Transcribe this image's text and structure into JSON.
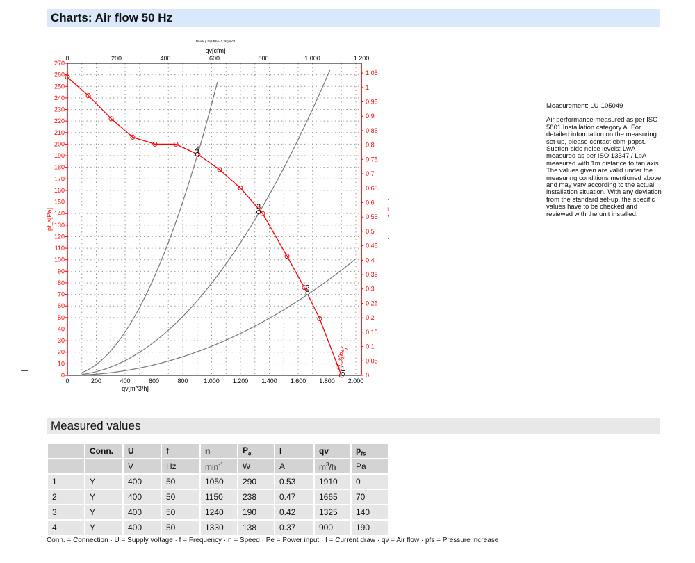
{
  "header": {
    "title": "Charts: Air flow 50 Hz"
  },
  "note": {
    "measurement": "Measurement: LU-105049",
    "text": "Air performance measured as per ISO 5801 Installation category A. For detailed information on the measuring set-up, please contact ebm-papst. Suction-side noise levels: LwA measured as per ISO 13347 / LpA measured with 1m distance to fan axis. The values given are valid under the measuring conditions mentioned above and may vary according to the actual installation situation. With any deviation from the standard set-up, the specific values have to be checked and reviewed with the unit installed."
  },
  "chart_data": {
    "type": "line",
    "title": "Druck p f @ Rho=1,2kg/m^3",
    "xlabel": "qv[m^3/h]",
    "x2label": "qv[cfm]",
    "ylabel": "pf_s[Pa]",
    "y2label": "pfs_E[IN H2O]",
    "xlim": [
      0,
      2000
    ],
    "ylim": [
      0,
      270
    ],
    "x2lim": [
      0,
      1200
    ],
    "y2lim": [
      0,
      1.05
    ],
    "xticks": [
      "0",
      "200",
      "400",
      "600",
      "800",
      "1.000",
      "1.200",
      "1.400",
      "1.600",
      "1.800",
      "2.000"
    ],
    "x2ticks": [
      "0",
      "200",
      "400",
      "600",
      "800",
      "1.000",
      "1.200"
    ],
    "yticks": [
      "0",
      "10",
      "20",
      "30",
      "40",
      "50",
      "60",
      "70",
      "80",
      "90",
      "100",
      "110",
      "120",
      "130",
      "140",
      "150",
      "160",
      "170",
      "180",
      "190",
      "200",
      "210",
      "220",
      "230",
      "240",
      "250",
      "260",
      "270"
    ],
    "y2ticks": [
      "0",
      "0,05",
      "0,1",
      "0,15",
      "0,2",
      "0,25",
      "0,3",
      "0,35",
      "0,4",
      "0,45",
      "0,5",
      "0,55",
      "0,6",
      "0,65",
      "0,7",
      "0,75",
      "0,8",
      "0,85",
      "0,9",
      "0,95",
      "1",
      "1,05"
    ],
    "fan_curve": {
      "name": "pf_s[Pa]",
      "color": "#ff0000",
      "x": [
        0,
        145,
        304,
        453,
        607,
        752,
        906,
        1055,
        1200,
        1354,
        1523,
        1643,
        1749,
        1900
      ],
      "y": [
        258,
        242,
        222,
        206,
        200,
        200,
        191,
        178,
        162,
        140,
        103,
        76,
        49,
        0
      ]
    },
    "system_curves": [
      {
        "label": "4",
        "k": 0.0002346,
        "xmax": 1055
      },
      {
        "label": "3",
        "k": 7.97e-05,
        "xmax": 1827
      },
      {
        "label": "2",
        "k": 2.52e-05,
        "xmax": 2000
      }
    ],
    "operating_points": [
      {
        "label": "1",
        "x": 1910,
        "y": 0
      },
      {
        "label": "2",
        "x": 1665,
        "y": 70
      },
      {
        "label": "3",
        "x": 1325,
        "y": 140
      },
      {
        "label": "4",
        "x": 900,
        "y": 190
      }
    ],
    "grid": true
  },
  "measured": {
    "title": "Measured values",
    "header": [
      "",
      "Conn.",
      "U",
      "f",
      "n",
      "Pe",
      "I",
      "qv",
      "pfs"
    ],
    "units": [
      "",
      "",
      "V",
      "Hz",
      "min-1",
      "W",
      "A",
      "m3/h",
      "Pa"
    ],
    "rows": [
      [
        "1",
        "Y",
        "400",
        "50",
        "1050",
        "290",
        "0.53",
        "1910",
        "0"
      ],
      [
        "2",
        "Y",
        "400",
        "50",
        "1150",
        "238",
        "0.47",
        "1665",
        "70"
      ],
      [
        "3",
        "Y",
        "400",
        "50",
        "1240",
        "190",
        "0.42",
        "1325",
        "140"
      ],
      [
        "4",
        "Y",
        "400",
        "50",
        "1330",
        "138",
        "0.37",
        "900",
        "190"
      ]
    ],
    "footnote": "Conn. = Connection · U = Supply voltage · f = Frequency · n = Speed · Pe = Power input · I = Current draw · qv = Air flow · pfs = Pressure increase"
  }
}
